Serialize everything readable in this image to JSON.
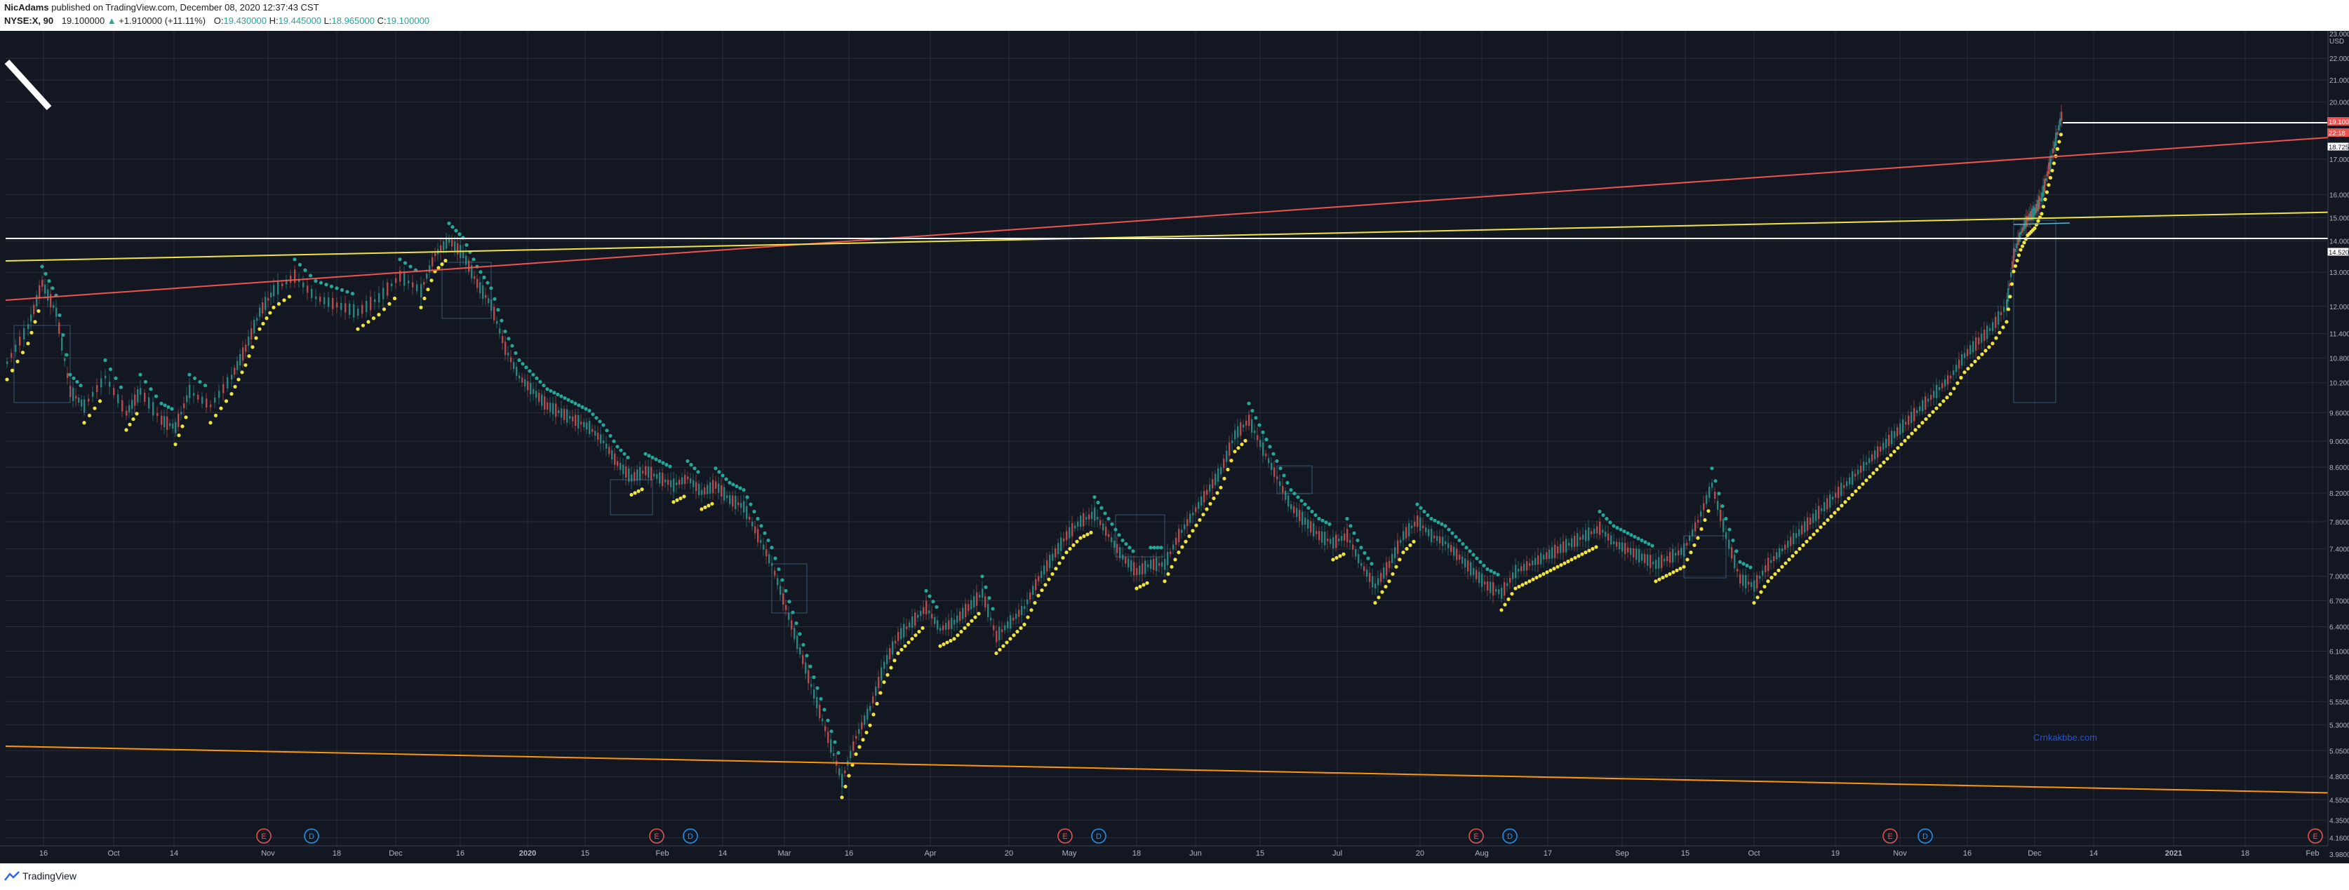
{
  "header": {
    "author": "NicAdams",
    "published_text": "published on TradingView.com, December 08, 2020 12:37:43 CST",
    "symbol": "NYSE:X, 90",
    "last": "19.100000",
    "change_arrow": "▲",
    "change": "+1.910000 (+11.11%)",
    "open_label": "O:",
    "open": "19.430000",
    "high_label": "H:",
    "high": "19.445000",
    "low_label": "L:",
    "low": "18.965000",
    "close_label": "C:",
    "close": "19.100000"
  },
  "price_axis": {
    "currency": "USD",
    "top_partial": "23.000000",
    "ticks": [
      "22.000000",
      "21.000000",
      "20.000000",
      "17.000000",
      "16.000000",
      "15.000000",
      "14.000000",
      "13.000000",
      "12.000000",
      "11.400000",
      "10.800000",
      "10.200000",
      "9.600000",
      "9.000000",
      "8.600000",
      "8.200000",
      "7.800000",
      "7.400000",
      "7.000000",
      "6.700000",
      "6.400000",
      "6.100000",
      "5.800000",
      "5.550000",
      "5.300000",
      "5.050000",
      "4.800000",
      "4.550000",
      "4.350000",
      "4.160000",
      "3.980000"
    ],
    "price_labels": [
      {
        "text": "19.100000",
        "color": "#ef5350"
      },
      {
        "text": "22:18",
        "color": "#ef5350"
      },
      {
        "text": "18.725000",
        "color": "#ffffff"
      },
      {
        "text": "14.520000",
        "color": "#ffffff"
      }
    ]
  },
  "time_axis": {
    "ticks": [
      "16",
      "Oct",
      "14",
      "Nov",
      "18",
      "Dec",
      "16",
      "2020",
      "15",
      "Feb",
      "14",
      "Mar",
      "16",
      "Apr",
      "20",
      "May",
      "18",
      "Jun",
      "15",
      "Jul",
      "20",
      "Aug",
      "17",
      "Sep",
      "15",
      "Oct",
      "19",
      "Nov",
      "16",
      "Dec",
      "14",
      "2021",
      "18",
      "Feb"
    ]
  },
  "events": {
    "earnings_letter": "E",
    "dividend_letter": "D",
    "earnings_color": "#ef5350",
    "dividend_color": "#2196f3"
  },
  "watermark": "Crnkakbbe.com",
  "footer": {
    "brand": "TradingView"
  },
  "colors": {
    "background": "#131722",
    "red_trendline": "#ef5350",
    "yellow_trendline": "#f0e442",
    "orange_trendline": "#ff9800",
    "support_line": "#ffffff",
    "teal_dots": "#26a69a",
    "yellow_dots": "#f0e442"
  }
}
